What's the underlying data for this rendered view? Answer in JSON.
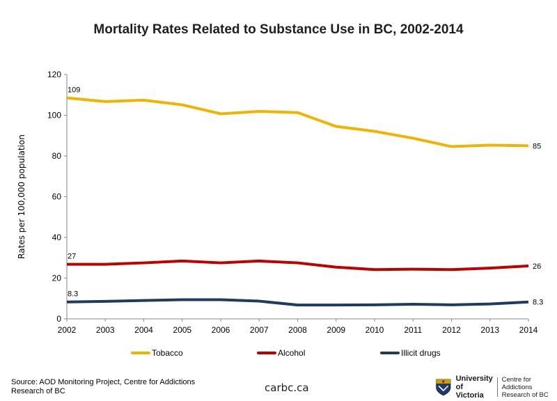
{
  "chart_data": {
    "type": "line",
    "title": "Mortality  Rates Related to Substance Use in BC, 2002-2014",
    "ylabel": "Rates per 100,000 population",
    "xlabel": "",
    "x": [
      "2002",
      "2003",
      "2004",
      "2005",
      "2006",
      "2007",
      "2008",
      "2009",
      "2010",
      "2011",
      "2012",
      "2013",
      "2014"
    ],
    "ylim": [
      0,
      120
    ],
    "yticks": [
      "0",
      "20",
      "40",
      "60",
      "80",
      "100",
      "120"
    ],
    "grid": false,
    "legend_position": "bottom",
    "series": [
      {
        "name": "Tobacco",
        "color": "#F0B400",
        "values": [
          108.5,
          106.7,
          107.4,
          105.1,
          100.7,
          101.9,
          101.3,
          94.5,
          92.1,
          88.7,
          84.6,
          85.3,
          85.0
        ],
        "start_label": "109",
        "end_label": "85"
      },
      {
        "name": "Alcohol",
        "color": "#C00000",
        "values": [
          26.8,
          26.8,
          27.5,
          28.4,
          27.5,
          28.4,
          27.5,
          25.4,
          24.2,
          24.4,
          24.2,
          24.9,
          26.0
        ],
        "start_label": "27",
        "end_label": "26"
      },
      {
        "name": "Illicit drugs",
        "color": "#1F3B5E",
        "values": [
          8.3,
          8.6,
          9.0,
          9.4,
          9.4,
          8.7,
          6.8,
          6.8,
          6.9,
          7.2,
          6.9,
          7.3,
          8.3
        ],
        "start_label": "8.3",
        "end_label": "8.3"
      }
    ]
  },
  "footer": {
    "source_line1": "Source: AOD Monitoring Project, Centre for Addictions",
    "source_line2": "Research of BC",
    "site": "carbc.ca",
    "uvic_line1": "University",
    "uvic_line2": "of Victoria",
    "centre_line1": "Centre for Addictions",
    "centre_line2": "Research of BC"
  }
}
